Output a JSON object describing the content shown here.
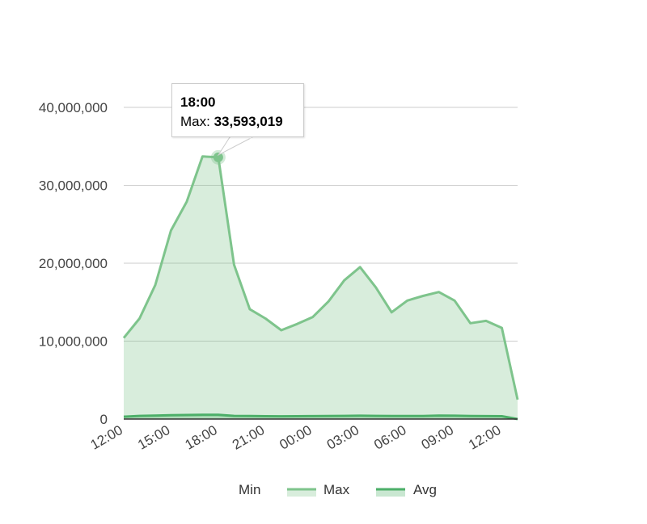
{
  "chart_data": {
    "type": "area",
    "x": [
      "12:00",
      "13:00",
      "14:00",
      "15:00",
      "16:00",
      "17:00",
      "18:00",
      "19:00",
      "20:00",
      "21:00",
      "22:00",
      "23:00",
      "00:00",
      "01:00",
      "02:00",
      "03:00",
      "04:00",
      "05:00",
      "06:00",
      "07:00",
      "08:00",
      "09:00",
      "10:00",
      "11:00",
      "12:00",
      "13:00"
    ],
    "x_tick_labels": [
      "12:00",
      "15:00",
      "18:00",
      "21:00",
      "00:00",
      "03:00",
      "06:00",
      "09:00",
      "12:00"
    ],
    "series": [
      {
        "name": "Min",
        "color": "#b7e1b7",
        "values": [
          0,
          0,
          0,
          0,
          0,
          0,
          0,
          0,
          0,
          0,
          0,
          0,
          0,
          0,
          0,
          0,
          0,
          0,
          0,
          0,
          0,
          0,
          0,
          0,
          0,
          0
        ]
      },
      {
        "name": "Max",
        "color": "#7ec48c",
        "values": [
          10400000,
          12900000,
          17200000,
          24200000,
          27900000,
          33700000,
          33593019,
          19800000,
          14100000,
          12900000,
          11400000,
          12200000,
          13100000,
          15100000,
          17800000,
          19500000,
          16900000,
          13700000,
          15200000,
          15800000,
          16300000,
          15200000,
          12300000,
          12600000,
          11700000,
          2500000
        ]
      },
      {
        "name": "Avg",
        "color": "#4caf68",
        "values": [
          300000,
          400000,
          450000,
          500000,
          520000,
          550000,
          550000,
          400000,
          380000,
          360000,
          350000,
          360000,
          370000,
          380000,
          400000,
          420000,
          400000,
          380000,
          380000,
          390000,
          450000,
          420000,
          380000,
          370000,
          360000,
          0
        ]
      }
    ],
    "ylim": [
      0,
      40000000
    ],
    "y_ticks": [
      "0",
      "10,000,000",
      "20,000,000",
      "30,000,000",
      "40,000,000"
    ],
    "grid": true,
    "legend_position": "bottom",
    "tooltip": {
      "title": "18:00",
      "label": "Max:",
      "value": "33,593,019"
    }
  }
}
